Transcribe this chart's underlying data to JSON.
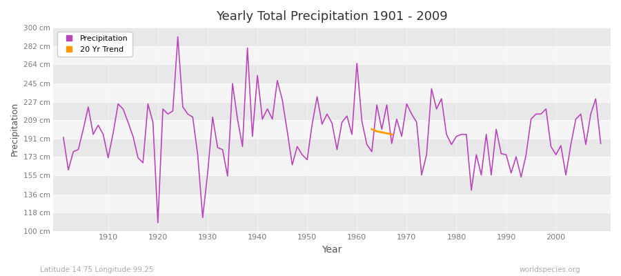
{
  "title": "Yearly Total Precipitation 1901 - 2009",
  "xlabel": "Year",
  "ylabel": "Precipitation",
  "subtitle_left": "Latitude 14.75 Longitude 99.25",
  "subtitle_right": "worldspecies.org",
  "legend_labels": [
    "Precipitation",
    "20 Yr Trend"
  ],
  "line_color": "#bb44bb",
  "trend_color": "#ff9900",
  "background_color": "#ffffff",
  "plot_bg_color": "#f0f0f0",
  "band_color_light": "#f5f5f5",
  "band_color_dark": "#e8e8e8",
  "ylim": [
    100,
    300
  ],
  "yticks": [
    100,
    118,
    136,
    155,
    173,
    191,
    209,
    227,
    245,
    264,
    282,
    300
  ],
  "ytick_labels": [
    "100 cm",
    "118 cm",
    "136 cm",
    "155 cm",
    "173 cm",
    "191 cm",
    "209 cm",
    "227 cm",
    "245 cm",
    "264 cm",
    "282 cm",
    "300 cm"
  ],
  "years": [
    1901,
    1902,
    1903,
    1904,
    1905,
    1906,
    1907,
    1908,
    1909,
    1910,
    1911,
    1912,
    1913,
    1914,
    1915,
    1916,
    1917,
    1918,
    1919,
    1920,
    1921,
    1922,
    1923,
    1924,
    1925,
    1926,
    1927,
    1928,
    1929,
    1930,
    1931,
    1932,
    1933,
    1934,
    1935,
    1936,
    1937,
    1938,
    1939,
    1940,
    1941,
    1942,
    1943,
    1944,
    1945,
    1946,
    1947,
    1948,
    1949,
    1950,
    1951,
    1952,
    1953,
    1954,
    1955,
    1956,
    1957,
    1958,
    1959,
    1960,
    1961,
    1962,
    1963,
    1964,
    1965,
    1966,
    1967,
    1968,
    1969,
    1970,
    1971,
    1972,
    1973,
    1974,
    1975,
    1976,
    1977,
    1978,
    1979,
    1980,
    1981,
    1982,
    1983,
    1984,
    1985,
    1986,
    1987,
    1988,
    1989,
    1990,
    1991,
    1992,
    1993,
    1994,
    1995,
    1996,
    1997,
    1998,
    1999,
    2000,
    2001,
    2002,
    2003,
    2004,
    2005,
    2006,
    2007,
    2008,
    2009
  ],
  "values": [
    192,
    160,
    178,
    180,
    200,
    222,
    195,
    204,
    195,
    172,
    196,
    225,
    220,
    207,
    193,
    172,
    167,
    225,
    207,
    108,
    220,
    215,
    218,
    291,
    222,
    215,
    212,
    175,
    113,
    157,
    212,
    182,
    180,
    154,
    245,
    210,
    183,
    280,
    193,
    253,
    210,
    220,
    210,
    248,
    229,
    198,
    165,
    183,
    175,
    170,
    205,
    232,
    205,
    215,
    206,
    180,
    207,
    213,
    195,
    265,
    208,
    185,
    178,
    224,
    200,
    224,
    186,
    210,
    193,
    225,
    215,
    207,
    155,
    175,
    240,
    220,
    230,
    195,
    185,
    193,
    195,
    195,
    140,
    175,
    155,
    195,
    155,
    200,
    176,
    175,
    157,
    173,
    153,
    175,
    210,
    215,
    215,
    220,
    183,
    175,
    184,
    155,
    185,
    210,
    215,
    185,
    215,
    230,
    186
  ],
  "trend_years": [
    1963,
    1964,
    1965,
    1966,
    1967
  ],
  "trend_values": [
    200,
    198,
    197,
    196,
    195
  ]
}
